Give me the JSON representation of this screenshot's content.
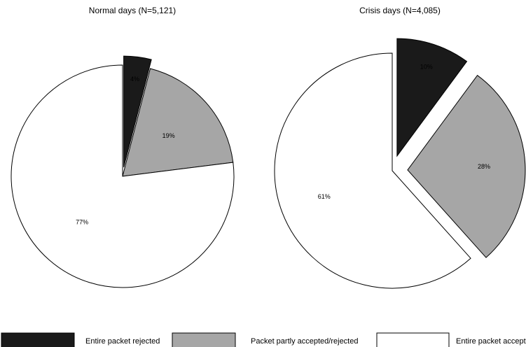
{
  "chart_data": [
    {
      "type": "pie",
      "title": "Normal days (N=5,121)",
      "exploded": true,
      "slices": [
        {
          "label": "Entire packet rejected",
          "value": 4,
          "value_label": "4%",
          "color": "#1a1a1a"
        },
        {
          "label": "Packet partly accepted/rejected",
          "value": 19,
          "value_label": "19%",
          "color": "#a6a6a6"
        },
        {
          "label": "Entire packet accepted",
          "value": 77,
          "value_label": "77%",
          "color": "#ffffff"
        }
      ]
    },
    {
      "type": "pie",
      "title": "Crisis days (N=4,085)",
      "exploded": true,
      "slices": [
        {
          "label": "Entire packet rejected",
          "value": 10,
          "value_label": "10%",
          "color": "#1a1a1a"
        },
        {
          "label": "Packet partly accepted/rejected",
          "value": 28,
          "value_label": "28%",
          "color": "#a6a6a6"
        },
        {
          "label": "Entire packet accepted",
          "value": 61,
          "value_label": "61%",
          "color": "#ffffff"
        }
      ]
    }
  ],
  "legend": {
    "placement": "bottom",
    "items": [
      {
        "label": "Entire packet rejected",
        "color": "#1a1a1a"
      },
      {
        "label": "Packet partly accepted/rejected",
        "color": "#a6a6a6"
      },
      {
        "label": "Entire packet accepted",
        "color": "#ffffff"
      }
    ]
  }
}
